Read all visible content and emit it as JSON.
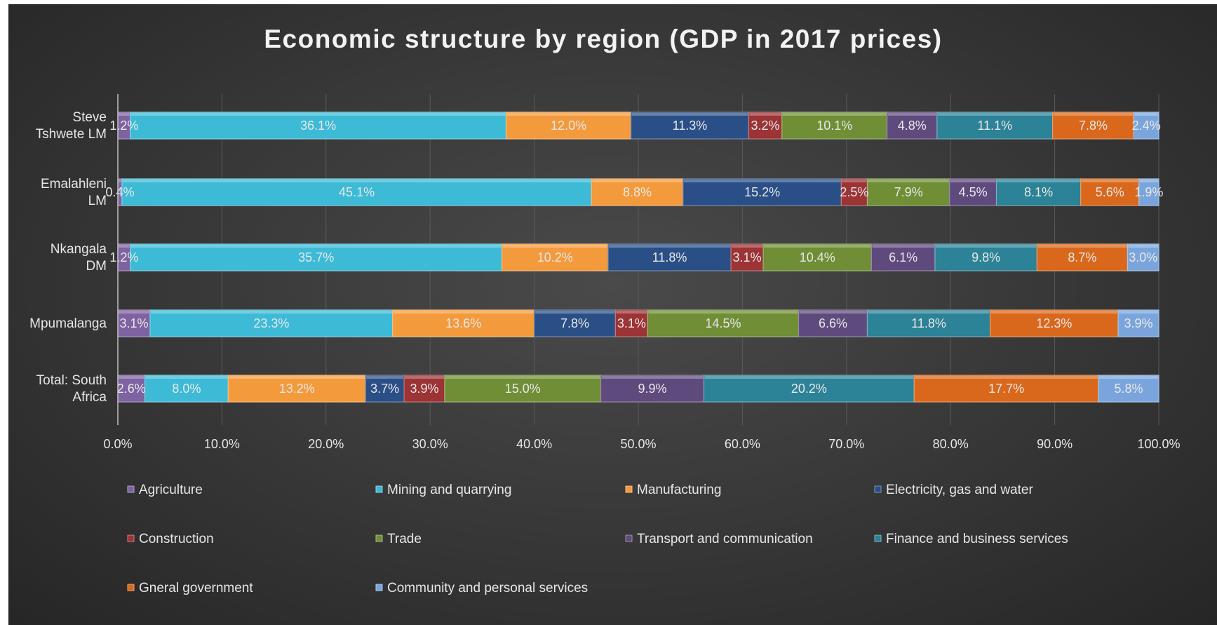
{
  "chart_data": {
    "type": "bar",
    "orientation": "horizontal",
    "stacked": "percent",
    "title": "Economic structure by region (GDP in 2017 prices)",
    "xlabel": "",
    "ylabel": "",
    "xlim": [
      0,
      100
    ],
    "x_ticks": [
      "0.0%",
      "10.0%",
      "20.0%",
      "30.0%",
      "40.0%",
      "50.0%",
      "60.0%",
      "70.0%",
      "80.0%",
      "90.0%",
      "100.0%"
    ],
    "categories": [
      [
        "Steve",
        "Tshwete LM"
      ],
      [
        "Emalahleni",
        "LM"
      ],
      [
        "Nkangala",
        "DM"
      ],
      [
        "Mpumalanga"
      ],
      [
        "Total: South",
        "Africa"
      ]
    ],
    "grid": true,
    "legend_position": "bottom",
    "series": [
      {
        "name": "Agriculture",
        "color": "#7e62a1",
        "values": [
          1.2,
          0.4,
          1.2,
          3.1,
          2.6
        ],
        "labels": [
          "1.2%",
          "0.4%",
          "1.2%",
          "3.1%",
          "2.6%"
        ]
      },
      {
        "name": "Mining and quarrying",
        "color": "#3dbad6",
        "values": [
          36.1,
          45.1,
          35.7,
          23.3,
          8.0
        ],
        "labels": [
          "36.1%",
          "45.1%",
          "35.7%",
          "23.3%",
          "8.0%"
        ]
      },
      {
        "name": "Manufacturing",
        "color": "#f39a3c",
        "values": [
          12.0,
          8.8,
          10.2,
          13.6,
          13.2
        ],
        "labels": [
          "12.0%",
          "8.8%",
          "10.2%",
          "13.6%",
          "13.2%"
        ]
      },
      {
        "name": "Electricity, gas and water",
        "color": "#2a4f86",
        "values": [
          11.3,
          15.2,
          11.8,
          7.8,
          3.7
        ],
        "labels": [
          "11.3%",
          "15.2%",
          "11.8%",
          "7.8%",
          "3.7%"
        ]
      },
      {
        "name": "Construction",
        "color": "#9c3335",
        "values": [
          3.2,
          2.5,
          3.1,
          3.1,
          3.9
        ],
        "labels": [
          "3.2%",
          "2.5%",
          "3.1%",
          "3.1%",
          "3.9%"
        ]
      },
      {
        "name": "Trade",
        "color": "#6f8e35",
        "values": [
          10.1,
          7.9,
          10.4,
          14.5,
          15.0
        ],
        "labels": [
          "10.1%",
          "7.9%",
          "10.4%",
          "14.5%",
          "15.0%"
        ]
      },
      {
        "name": "Transport and communication",
        "color": "#5f4a7e",
        "values": [
          4.8,
          4.5,
          6.1,
          6.6,
          9.9
        ],
        "labels": [
          "4.8%",
          "4.5%",
          "6.1%",
          "6.6%",
          "9.9%"
        ]
      },
      {
        "name": "Finance and business services",
        "color": "#2c8296",
        "values": [
          11.1,
          8.1,
          9.8,
          11.8,
          20.2
        ],
        "labels": [
          "11.1%",
          "8.1%",
          "9.8%",
          "11.8%",
          "20.2%"
        ]
      },
      {
        "name": "Gneral government",
        "color": "#d9681c",
        "values": [
          7.8,
          5.6,
          8.7,
          12.3,
          17.7
        ],
        "labels": [
          "7.8%",
          "5.6%",
          "8.7%",
          "12.3%",
          "17.7%"
        ]
      },
      {
        "name": "Community and personal services",
        "color": "#7aa5dc",
        "values": [
          2.4,
          1.9,
          3.0,
          3.9,
          5.8
        ],
        "labels": [
          "2.4%",
          "1.9%",
          "3.0%",
          "3.9%",
          "5.8%"
        ]
      }
    ]
  }
}
